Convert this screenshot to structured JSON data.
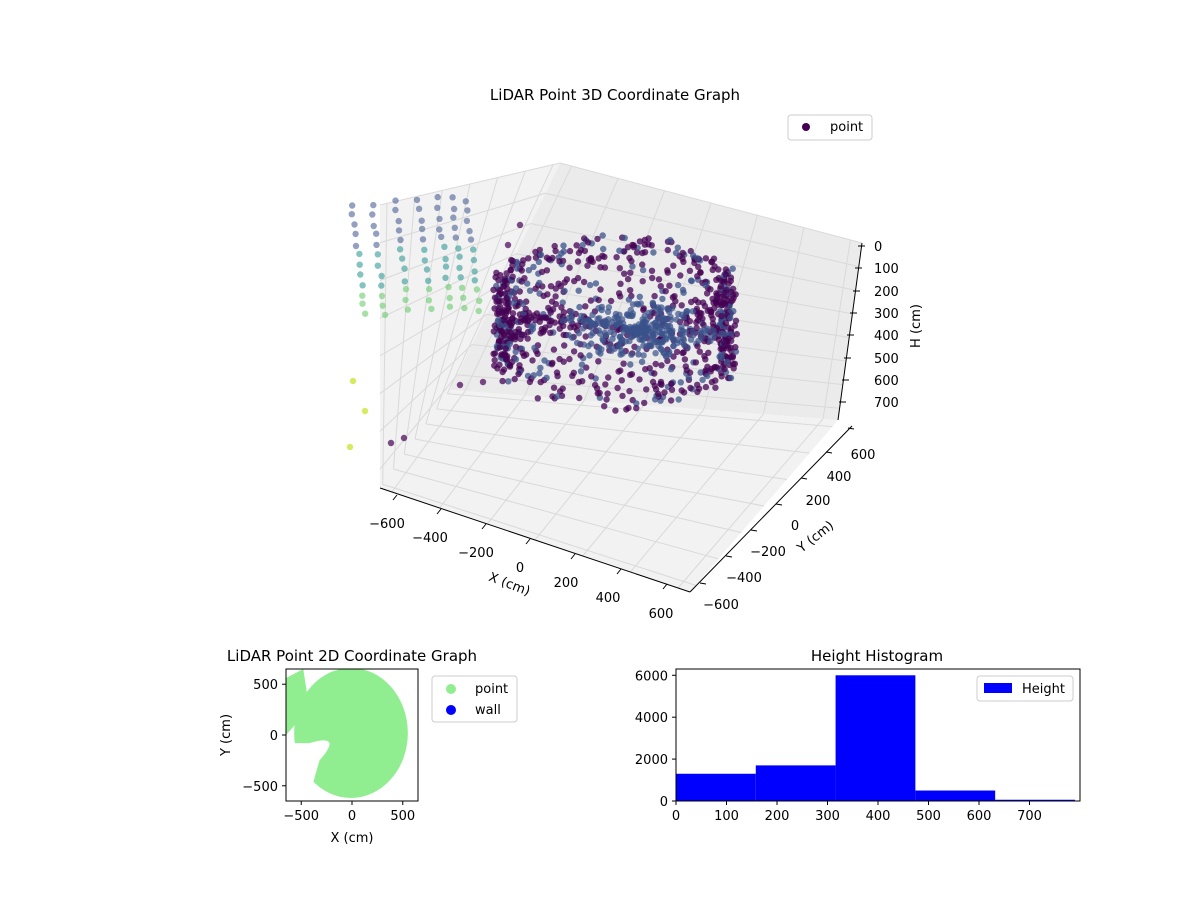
{
  "colors": {
    "point_3d_dark": "#440154",
    "point_3d_mid": "#3b528b",
    "point_3d_teal": "#21918c",
    "point_3d_green": "#5ec962",
    "point_3d_yellow": "#c8e020",
    "point_2d": "#90ee90",
    "wall": "#0000ff",
    "hist_bar": "#0000ff",
    "pane": "#f2f2f2",
    "grid": "#d9d9d9"
  },
  "chart_data": [
    {
      "type": "scatter",
      "projection": "3d",
      "title": "LiDAR Point 3D Coordinate Graph",
      "xlabel": "X (cm)",
      "ylabel": "Y (cm)",
      "zlabel": "H (cm)",
      "xlim": [
        -650,
        650
      ],
      "ylim": [
        -650,
        650
      ],
      "zlim": [
        750,
        0
      ],
      "x_ticks": [
        -600,
        -400,
        -200,
        0,
        200,
        400,
        600
      ],
      "y_ticks": [
        -600,
        -400,
        -200,
        0,
        200,
        400,
        600
      ],
      "z_ticks": [
        0,
        100,
        200,
        300,
        400,
        500,
        600,
        700
      ],
      "x_tick_labels": [
        "−600",
        "−400",
        "−200",
        "0",
        "200",
        "400",
        "600"
      ],
      "y_tick_labels": [
        "−600",
        "−400",
        "−200",
        "0",
        "200",
        "400",
        "600"
      ],
      "z_tick_labels": [
        "0",
        "100",
        "200",
        "300",
        "400",
        "500",
        "600",
        "700"
      ],
      "series": [
        {
          "name": "point"
        }
      ],
      "legend": "upper-right",
      "grid": true,
      "shape": "ring-shaped wall of points around the origin (radius ≈ 550–620 cm), heights mostly 200–550 cm, with sparse outliers toward −X",
      "colormap": "viridis"
    },
    {
      "type": "scatter",
      "title": "LiDAR Point 2D Coordinate Graph",
      "xlabel": "X (cm)",
      "ylabel": "Y (cm)",
      "xlim": [
        -650,
        650
      ],
      "ylim": [
        -650,
        650
      ],
      "x_ticks": [
        -500,
        0,
        500
      ],
      "y_ticks": [
        -500,
        0,
        500
      ],
      "x_tick_labels": [
        "−500",
        "0",
        "500"
      ],
      "y_tick_labels": [
        "−500",
        "0",
        "500"
      ],
      "series": [
        {
          "name": "point"
        },
        {
          "name": "wall"
        }
      ],
      "legend": "outside-right",
      "shape": "filled region of points approximating a disc of radius ≈ 570 cm with an indentation on the left side"
    },
    {
      "type": "bar",
      "subtype": "histogram",
      "title": "Height Histogram",
      "xlabel": "",
      "ylabel": "",
      "bin_edges": [
        0,
        158,
        316,
        474,
        632,
        790
      ],
      "values": [
        1300,
        1700,
        6000,
        500,
        60
      ],
      "xlim": [
        0,
        800
      ],
      "ylim": [
        0,
        6300
      ],
      "x_ticks": [
        0,
        100,
        200,
        300,
        400,
        500,
        600,
        700
      ],
      "y_ticks": [
        0,
        2000,
        4000,
        6000
      ],
      "x_tick_labels": [
        "0",
        "100",
        "200",
        "300",
        "400",
        "500",
        "600",
        "700"
      ],
      "y_tick_labels": [
        "0",
        "2000",
        "4000",
        "6000"
      ],
      "series": [
        {
          "name": "Height"
        }
      ],
      "legend": "upper-right"
    }
  ]
}
